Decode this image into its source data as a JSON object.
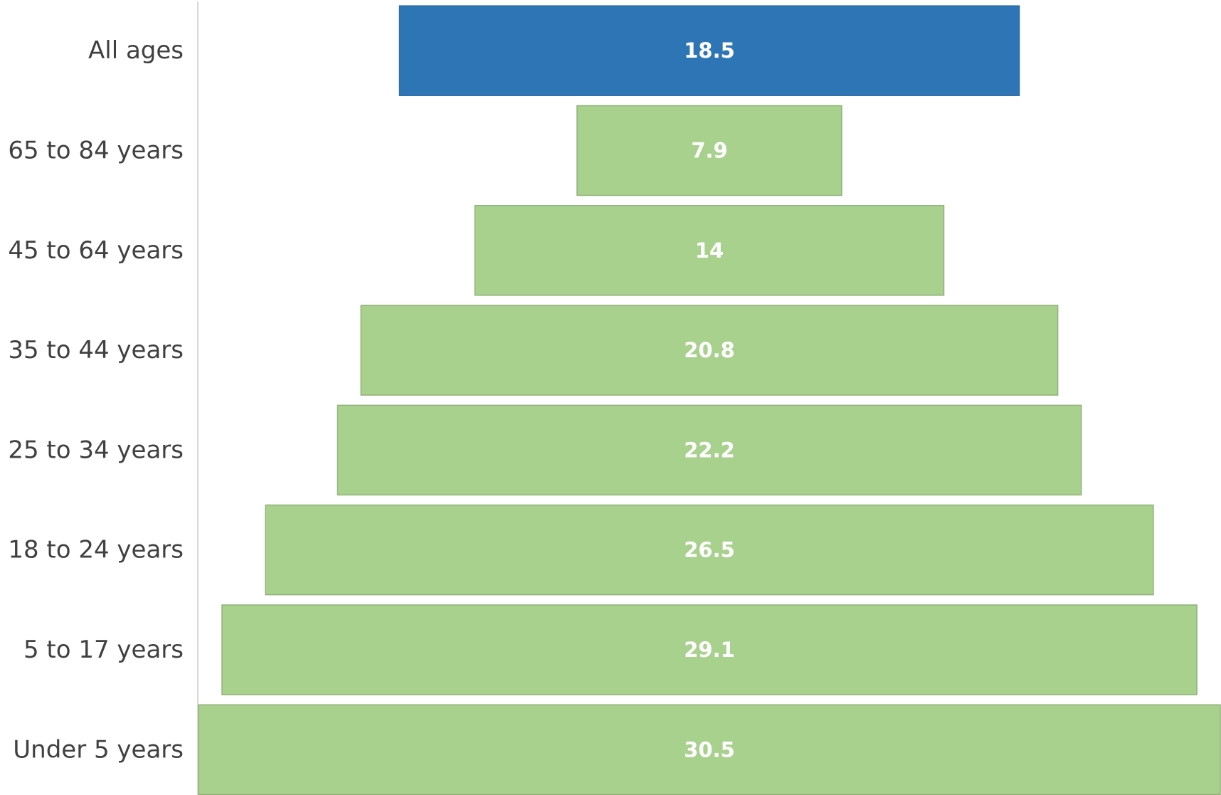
{
  "chart_data": {
    "type": "bar",
    "categories": [
      "All ages",
      "65 to 84 years",
      "45 to 64 years",
      "35 to 44 years",
      "25 to 34 years",
      "18 to 24 years",
      "5 to 17 years",
      "Under 5 years"
    ],
    "values": [
      18.5,
      7.9,
      14,
      20.8,
      22.2,
      26.5,
      29.1,
      30.5
    ],
    "value_labels": [
      "18.5",
      "7.9",
      "14",
      "20.8",
      "22.2",
      "26.5",
      "29.1",
      "30.5"
    ],
    "orientation": "horizontal",
    "alignment": "centered",
    "title": "",
    "xlabel": "",
    "ylabel": "",
    "xlim": [
      0,
      30.5
    ],
    "grid": false,
    "legend": "none",
    "colors": {
      "highlight_fill": "#2e75b6",
      "highlight_stroke": "#2a6aa6",
      "bar_fill": "#a9d18e",
      "bar_stroke": "#8fb179",
      "axis": "#d9d9d9",
      "category_text": "#404040",
      "value_text": "#ffffff"
    },
    "highlight_index": 0
  }
}
